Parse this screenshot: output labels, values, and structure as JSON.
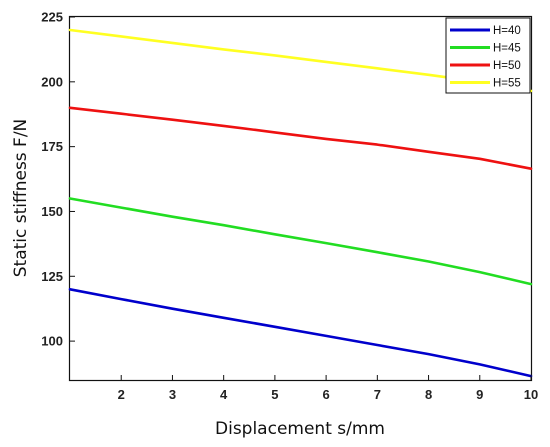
{
  "chart_data": {
    "type": "line",
    "xlabel": "Displacement s/mm",
    "ylabel": "Static stiffness F/N",
    "xlim": [
      1,
      10
    ],
    "ylim": [
      85,
      225
    ],
    "xticks": [
      2,
      3,
      4,
      5,
      6,
      7,
      8,
      9,
      10
    ],
    "yticks": [
      100,
      125,
      150,
      175,
      200,
      225
    ],
    "grid": false,
    "legend_position": "top-right",
    "series": [
      {
        "name": "H=40",
        "color": "#0000cc",
        "x": [
          1,
          2,
          3,
          4,
          5,
          6,
          7,
          8,
          9,
          10
        ],
        "y": [
          120,
          116.2,
          112.5,
          109,
          105.5,
          102,
          98.5,
          95,
          91,
          86.5
        ]
      },
      {
        "name": "H=45",
        "color": "#22dd22",
        "x": [
          1,
          2,
          3,
          4,
          5,
          6,
          7,
          8,
          9,
          10
        ],
        "y": [
          155,
          151.5,
          148,
          144.7,
          141.2,
          137.8,
          134.3,
          130.7,
          126.6,
          122
        ]
      },
      {
        "name": "H=50",
        "color": "#ee1111",
        "x": [
          1,
          2,
          3,
          4,
          5,
          6,
          7,
          8,
          9,
          10
        ],
        "y": [
          190,
          187.7,
          185.4,
          183,
          180.5,
          178,
          175.8,
          173,
          170.3,
          166.5
        ]
      },
      {
        "name": "H=55",
        "color": "#ffff22",
        "x": [
          1,
          2,
          3,
          4,
          5,
          6,
          7,
          8,
          9,
          10
        ],
        "y": [
          220,
          217.5,
          215,
          212.5,
          210.2,
          207.7,
          205.2,
          202.7,
          200,
          196.5
        ]
      }
    ]
  }
}
